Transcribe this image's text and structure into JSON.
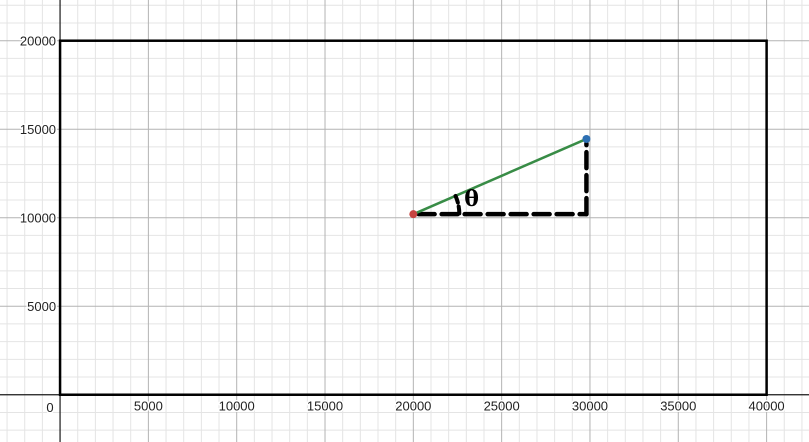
{
  "chart_data": {
    "type": "scatter",
    "title": "",
    "xlabel": "",
    "ylabel": "",
    "xlim": [
      -3400,
      42400
    ],
    "ylim": [
      -2670,
      22300
    ],
    "grid": true,
    "x_ticks": [
      0,
      5000,
      10000,
      15000,
      20000,
      25000,
      30000,
      35000,
      40000
    ],
    "y_ticks": [
      5000,
      10000,
      15000,
      20000
    ],
    "x_tick_labels": [
      "5000",
      "10000",
      "15000",
      "20000",
      "25000",
      "30000",
      "35000",
      "40000"
    ],
    "y_tick_labels": [
      "5000",
      "10000",
      "15000",
      "20000"
    ],
    "origin_label": "0",
    "boundary_rectangle": {
      "x": [
        0,
        40000
      ],
      "y": [
        0,
        20000
      ],
      "color": "#000000"
    },
    "segment": {
      "from": [
        20000,
        10200
      ],
      "to": [
        29800,
        14450
      ],
      "color": "#388c46"
    },
    "points": [
      {
        "x": 20000,
        "y": 10200,
        "color": "#c74440"
      },
      {
        "x": 29800,
        "y": 14450,
        "color": "#2d70b3"
      }
    ],
    "dashed_legs": {
      "horizontal": {
        "from": [
          20300,
          10200
        ],
        "to": [
          29800,
          10200
        ]
      },
      "vertical": {
        "from": [
          29800,
          10200
        ],
        "to": [
          29800,
          14200
        ]
      },
      "color": "#000000"
    },
    "angle_arc": {
      "center": [
        20000,
        10200
      ],
      "from_deg": 0,
      "to_deg": 23.4
    },
    "angle_label": {
      "text": "θ",
      "x": 23300,
      "y": 10650
    }
  }
}
